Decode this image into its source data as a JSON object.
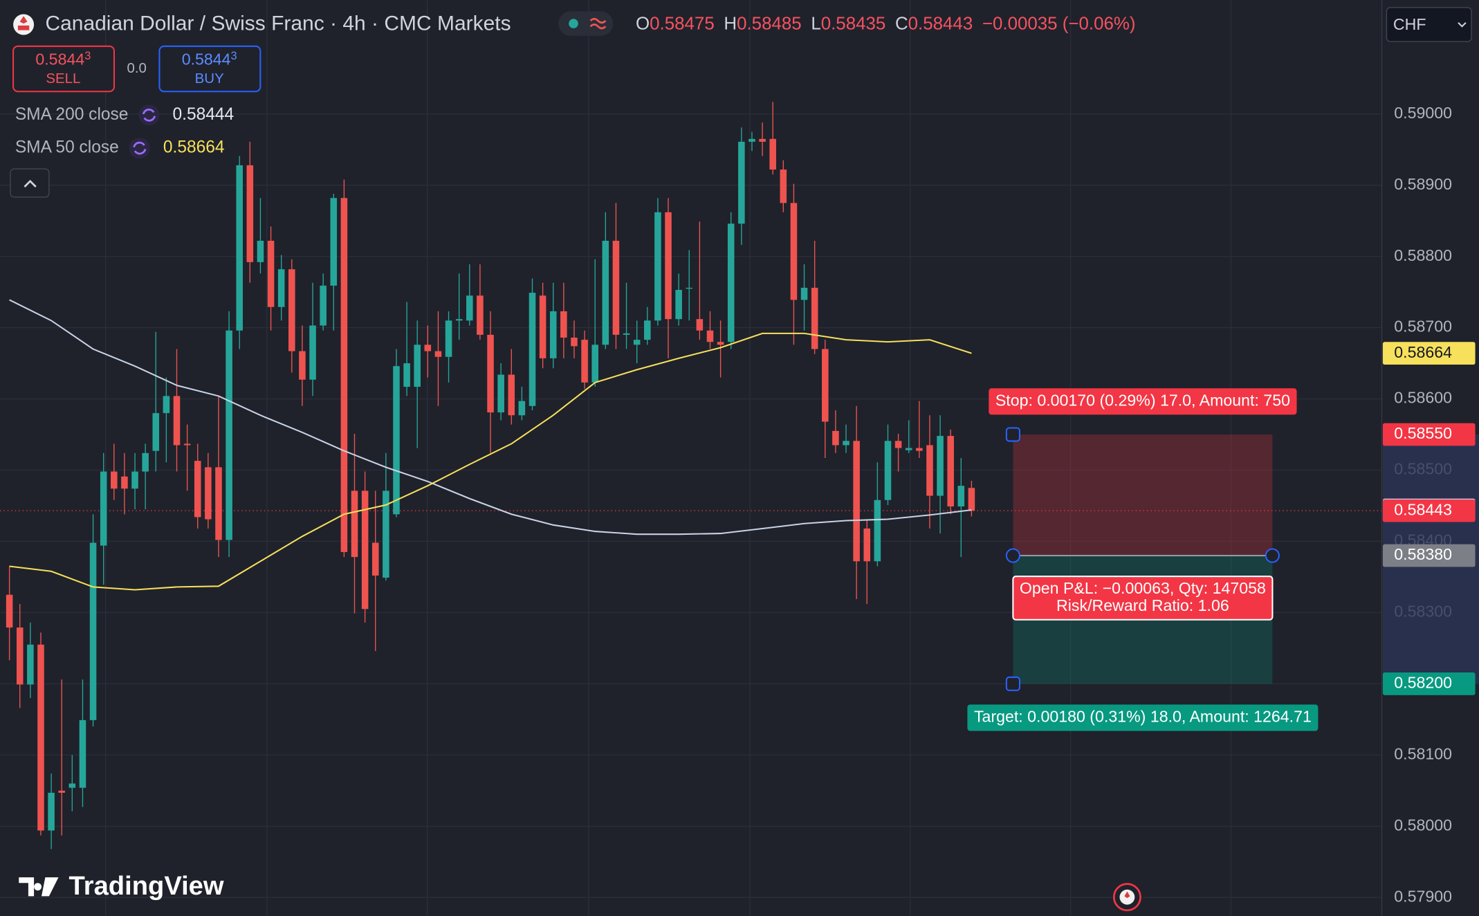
{
  "header": {
    "title": "Canadian Dollar / Swiss Franc · 4h · CMC Markets",
    "ohlc": [
      {
        "letter": "O",
        "value": "0.58475"
      },
      {
        "letter": "H",
        "value": "0.58485"
      },
      {
        "letter": "L",
        "value": "0.58435"
      },
      {
        "letter": "C",
        "value": "0.58443"
      }
    ],
    "change": "−0.00035 (−0.06%)"
  },
  "trade": {
    "sell": {
      "price": "0.5844",
      "pip": "3",
      "label": "SELL"
    },
    "spread": "0.0",
    "buy": {
      "price": "0.5844",
      "pip": "3",
      "label": "BUY"
    }
  },
  "currency": "CHF",
  "brand": "TradingView",
  "chart_data": {
    "type": "candlestick",
    "up_color": "#26a69a",
    "down_color": "#ef5350",
    "open": [
      0.58325,
      0.58279,
      0.58199,
      0.58255,
      0.57994,
      0.5805,
      0.58054,
      0.58054,
      0.58149,
      0.58394,
      0.58498,
      0.58491,
      0.58474,
      0.58498,
      0.58527,
      0.5858,
      0.58604,
      0.58537,
      0.58513,
      0.58504,
      0.58504,
      0.58402,
      0.58696,
      0.58928,
      0.58792,
      0.58822,
      0.58729,
      0.58782,
      0.58667,
      0.58627,
      0.58703,
      0.58759,
      0.58882,
      0.58471,
      0.58471,
      0.58398,
      0.58349,
      0.58438,
      0.58617,
      0.58617,
      0.58676,
      0.58667,
      0.58659,
      0.5871,
      0.5871,
      0.58745,
      0.5869,
      0.58581,
      0.58634,
      0.58577,
      0.5859,
      0.58745,
      0.58657,
      0.58723,
      0.58686,
      0.58683,
      0.58623,
      0.58676,
      0.58822,
      0.5869,
      0.58676,
      0.58683,
      0.5871,
      0.58862,
      0.58712,
      0.58756,
      0.58712,
      0.58696,
      0.5868,
      0.5868,
      0.58846,
      0.58961,
      0.58965,
      0.58965,
      0.58922,
      0.58875,
      0.58739,
      0.58756,
      0.5867,
      0.58555,
      0.58535,
      0.58541,
      0.58418,
      0.58372,
      0.58458,
      0.58541,
      0.58528,
      0.58531,
      0.58535,
      0.58464,
      0.58548,
      0.58449,
      0.58475
    ],
    "high": [
      0.58365,
      0.58312,
      0.58286,
      0.58272,
      0.58074,
      0.58206,
      0.581,
      0.58206,
      0.58438,
      0.58524,
      0.58537,
      0.58524,
      0.58524,
      0.58537,
      0.58694,
      0.5863,
      0.5867,
      0.58564,
      0.58537,
      0.58524,
      0.58604,
      0.58723,
      0.58941,
      0.58961,
      0.58882,
      0.58842,
      0.58802,
      0.58796,
      0.58703,
      0.58763,
      0.58776,
      0.58888,
      0.58908,
      0.58551,
      0.58498,
      0.58471,
      0.58524,
      0.5867,
      0.58736,
      0.5871,
      0.58703,
      0.58723,
      0.58723,
      0.58776,
      0.58789,
      0.58789,
      0.58723,
      0.5865,
      0.5867,
      0.58617,
      0.58769,
      0.58763,
      0.58763,
      0.58763,
      0.5871,
      0.58696,
      0.58796,
      0.58862,
      0.58875,
      0.58763,
      0.5871,
      0.58729,
      0.58882,
      0.58882,
      0.58776,
      0.58809,
      0.58849,
      0.58723,
      0.5871,
      0.58862,
      0.58981,
      0.58975,
      0.58988,
      0.59017,
      0.58935,
      0.58902,
      0.58789,
      0.58822,
      0.58683,
      0.58584,
      0.58564,
      0.5859,
      0.58431,
      0.58511,
      0.58564,
      0.58551,
      0.5857,
      0.58597,
      0.58577,
      0.58577,
      0.58557,
      0.58517,
      0.58485
    ],
    "low": [
      0.58233,
      0.58166,
      0.5818,
      0.57987,
      0.57968,
      0.57987,
      0.58021,
      0.58027,
      0.5814,
      0.58339,
      0.58458,
      0.58438,
      0.58445,
      0.58445,
      0.58498,
      0.58511,
      0.58498,
      0.58471,
      0.58418,
      0.58418,
      0.58378,
      0.58378,
      0.5867,
      0.58763,
      0.58776,
      0.58696,
      0.5871,
      0.58637,
      0.5859,
      0.58604,
      0.58696,
      0.58696,
      0.58378,
      0.58299,
      0.58286,
      0.58246,
      0.58345,
      0.58434,
      0.58604,
      0.58531,
      0.5863,
      0.5859,
      0.58623,
      0.58683,
      0.58703,
      0.58683,
      0.58524,
      0.5857,
      0.58564,
      0.5857,
      0.58584,
      0.58643,
      0.58643,
      0.58657,
      0.58657,
      0.58614,
      0.58617,
      0.5867,
      0.5867,
      0.5867,
      0.5865,
      0.58676,
      0.58703,
      0.58657,
      0.58703,
      0.5871,
      0.58683,
      0.5867,
      0.5863,
      0.5867,
      0.58816,
      0.58948,
      0.58941,
      0.58915,
      0.58862,
      0.58676,
      0.58696,
      0.58663,
      0.58517,
      0.58524,
      0.58524,
      0.58319,
      0.58312,
      0.58365,
      0.58451,
      0.58498,
      0.58524,
      0.58517,
      0.58418,
      0.58411,
      0.58438,
      0.58378,
      0.58435
    ],
    "close": [
      0.58279,
      0.58199,
      0.58255,
      0.57994,
      0.58047,
      0.58047,
      0.5806,
      0.58149,
      0.58398,
      0.58498,
      0.58474,
      0.58474,
      0.58498,
      0.58524,
      0.5858,
      0.58604,
      0.58535,
      0.58535,
      0.58434,
      0.58431,
      0.58402,
      0.58696,
      0.58928,
      0.58792,
      0.58822,
      0.58729,
      0.58782,
      0.58667,
      0.58627,
      0.58703,
      0.58759,
      0.58882,
      0.58385,
      0.58378,
      0.58305,
      0.58352,
      0.58471,
      0.58646,
      0.5865,
      0.58676,
      0.58667,
      0.58659,
      0.5871,
      0.58712,
      0.58745,
      0.5869,
      0.58581,
      0.58634,
      0.58577,
      0.58597,
      0.58749,
      0.58657,
      0.58723,
      0.58686,
      0.58674,
      0.58623,
      0.58676,
      0.58822,
      0.5869,
      0.58692,
      0.58683,
      0.5871,
      0.58862,
      0.58712,
      0.58753,
      0.58756,
      0.58696,
      0.5868,
      0.58676,
      0.58846,
      0.58961,
      0.58965,
      0.58961,
      0.58922,
      0.58875,
      0.58739,
      0.58756,
      0.5867,
      0.58568,
      0.58535,
      0.58541,
      0.58372,
      0.58372,
      0.58458,
      0.58541,
      0.58531,
      0.58531,
      0.58527,
      0.58464,
      0.58548,
      0.58449,
      0.58478,
      0.58443
    ],
    "series": [
      {
        "name": "SMA 200 close",
        "color": "#c9d3e6",
        "x": [
          0,
          4,
          8,
          12,
          16,
          20,
          24,
          28,
          32,
          36,
          40,
          44,
          48,
          52,
          56,
          60,
          64,
          68,
          72,
          76,
          80,
          84,
          88,
          92
        ],
        "values": [
          0.58739,
          0.5871,
          0.5867,
          0.58646,
          0.58619,
          0.58604,
          0.58577,
          0.58553,
          0.58527,
          0.58504,
          0.58484,
          0.5846,
          0.58438,
          0.58423,
          0.58414,
          0.5841,
          0.5841,
          0.58411,
          0.58418,
          0.58425,
          0.58429,
          0.58431,
          0.58437,
          0.58444
        ]
      },
      {
        "name": "SMA 50 close",
        "color": "#f7e05b",
        "x": [
          0,
          4,
          8,
          12,
          16,
          20,
          24,
          28,
          32,
          36,
          40,
          44,
          48,
          52,
          56,
          60,
          64,
          68,
          72,
          76,
          80,
          84,
          88,
          92
        ],
        "values": [
          0.58365,
          0.58358,
          0.58336,
          0.58332,
          0.58336,
          0.58337,
          0.58372,
          0.58407,
          0.58438,
          0.58451,
          0.58478,
          0.58508,
          0.58537,
          0.58577,
          0.58623,
          0.58641,
          0.58657,
          0.58672,
          0.58692,
          0.58692,
          0.58683,
          0.5868,
          0.58683,
          0.58664
        ]
      }
    ],
    "ylim": [
      0.57874,
      0.5916
    ],
    "yticks": [
      {
        "value": 0.579,
        "label": "0.57900"
      },
      {
        "value": 0.58,
        "label": "0.58000"
      },
      {
        "value": 0.581,
        "label": "0.58100"
      },
      {
        "value": 0.582,
        "label": "0.58200"
      },
      {
        "value": 0.583,
        "label": "0.58300"
      },
      {
        "value": 0.584,
        "label": "0.58400"
      },
      {
        "value": 0.585,
        "label": "0.58500"
      },
      {
        "value": 0.586,
        "label": "0.58600"
      },
      {
        "value": 0.587,
        "label": "0.58700"
      },
      {
        "value": 0.588,
        "label": "0.58800"
      },
      {
        "value": 0.589,
        "label": "0.58900"
      },
      {
        "value": 0.59,
        "label": "0.59000"
      }
    ],
    "grid": true,
    "last_price": 0.58443,
    "position": {
      "stop": 0.5855,
      "entry": 0.5838,
      "target": 0.582,
      "stop_label": "Stop: 0.00170 (0.29%) 17.0, Amount: 750",
      "target_label": "Target: 0.00180 (0.31%) 18.0, Amount: 1264.71",
      "pnl_label": "Open P&L: −0.00063, Qty: 147058",
      "ratio_label": "Risk/Reward Ratio: 1.06"
    },
    "price_labels": [
      {
        "value": 0.58664,
        "label": "0.58664",
        "color": "#f7e05b"
      },
      {
        "value": 0.5855,
        "label": "0.58550",
        "color": "#f23645"
      },
      {
        "value": 0.58444,
        "label": "0.58444",
        "color": "#d6e2fa"
      },
      {
        "value": 0.58443,
        "label": "0.58443",
        "color": "#f23645"
      },
      {
        "value": 0.5838,
        "label": "0.58380",
        "color": "#7d7f87"
      },
      {
        "value": 0.582,
        "label": "0.58200",
        "color": "#089981"
      }
    ]
  }
}
